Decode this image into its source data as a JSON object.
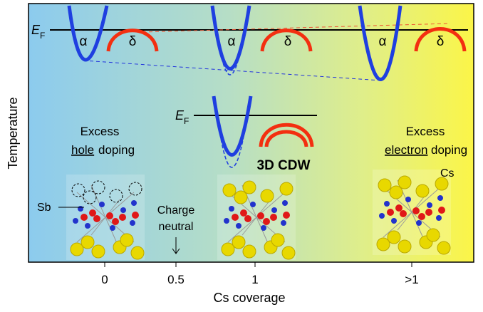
{
  "axis": {
    "y_label": "Temperature",
    "x_label": "Cs coverage",
    "ticks": [
      "0",
      "0.5",
      "1",
      ">1"
    ]
  },
  "ef": {
    "symbol": "E",
    "subscript": "F"
  },
  "bands": {
    "alpha": "α",
    "delta": "δ"
  },
  "left": {
    "line1": "Excess",
    "underlined": "hole",
    "rest": "doping",
    "atom": "Sb"
  },
  "middle": {
    "label": "3D CDW",
    "note": [
      "Charge",
      "neutral"
    ]
  },
  "right": {
    "line1": "Excess",
    "underlined": "electron",
    "rest": "doping",
    "atom": "Cs"
  }
}
